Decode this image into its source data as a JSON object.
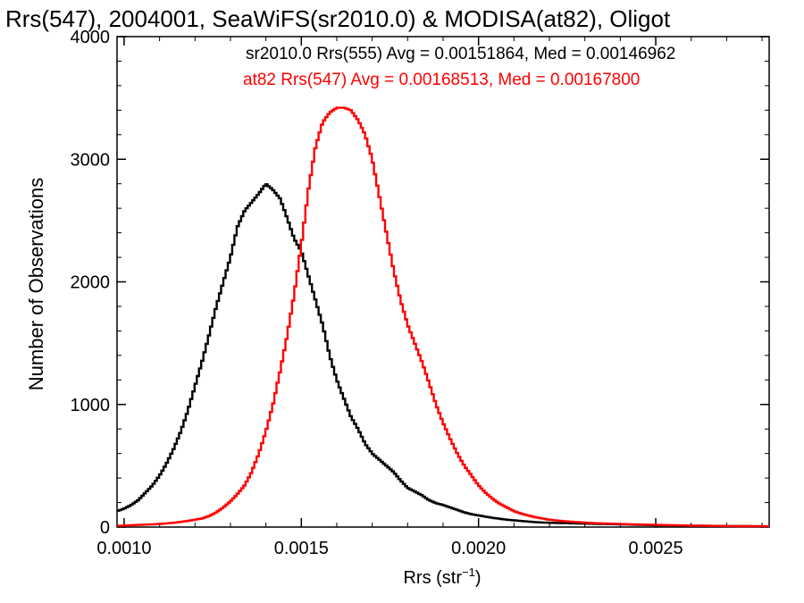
{
  "chart_data": {
    "type": "line",
    "title": "Rrs(547), 2004001, SeaWiFS(sr2010.0) & MODISA(at82), Oligot",
    "xlabel": "Rrs (str",
    "xlabel_sup": "−1",
    "xlabel_close": ")",
    "ylabel": "Number of Observations",
    "xlim": [
      0.00098,
      0.00282
    ],
    "ylim": [
      0,
      4000
    ],
    "xticks": [
      0.001,
      0.0015,
      0.002,
      0.0025
    ],
    "xtick_labels": [
      "0.0010",
      "0.0015",
      "0.0020",
      "0.0025"
    ],
    "yticks": [
      0,
      1000,
      2000,
      3000,
      4000
    ],
    "ytick_labels": [
      "0",
      "1000",
      "2000",
      "3000",
      "4000"
    ],
    "grid": false,
    "legend_position": "top-right",
    "series": [
      {
        "label": "sr2010.0 Rrs(555) Avg = 0.00151864, Med = 0.00146962",
        "color": "#000000",
        "x": [
          0.00098,
          0.001,
          0.00102,
          0.00104,
          0.00106,
          0.00108,
          0.0011,
          0.00112,
          0.00114,
          0.00116,
          0.00118,
          0.0012,
          0.00122,
          0.00124,
          0.00126,
          0.00128,
          0.0013,
          0.00132,
          0.00134,
          0.00136,
          0.00138,
          0.0014,
          0.00142,
          0.00144,
          0.00146,
          0.00148,
          0.0015,
          0.00152,
          0.00154,
          0.00156,
          0.00158,
          0.0016,
          0.00162,
          0.00164,
          0.00166,
          0.00168,
          0.0017,
          0.00172,
          0.00174,
          0.00176,
          0.00178,
          0.0018,
          0.00182,
          0.00184,
          0.00186,
          0.00188,
          0.0019,
          0.00192,
          0.00194,
          0.00196,
          0.00198,
          0.002,
          0.00204,
          0.00208,
          0.00212,
          0.00216,
          0.0022,
          0.00225,
          0.0023,
          0.0024,
          0.0025,
          0.0026,
          0.0027,
          0.00282
        ],
        "y": [
          130,
          150,
          180,
          220,
          280,
          340,
          420,
          520,
          640,
          780,
          950,
          1150,
          1350,
          1570,
          1800,
          2000,
          2200,
          2450,
          2580,
          2650,
          2720,
          2800,
          2750,
          2680,
          2520,
          2350,
          2250,
          2050,
          1850,
          1650,
          1400,
          1200,
          1050,
          900,
          800,
          680,
          600,
          550,
          500,
          450,
          380,
          320,
          290,
          260,
          220,
          195,
          180,
          160,
          140,
          120,
          105,
          95,
          75,
          60,
          50,
          40,
          35,
          32,
          28,
          22,
          15,
          12,
          8,
          6
        ]
      },
      {
        "label": "at82 Rrs(547) Avg = 0.00168513, Med = 0.00167800",
        "color": "#ff0000",
        "x": [
          0.00098,
          0.00102,
          0.00106,
          0.0011,
          0.00114,
          0.00118,
          0.00122,
          0.00124,
          0.00126,
          0.00128,
          0.0013,
          0.00132,
          0.00134,
          0.00136,
          0.00138,
          0.0014,
          0.00142,
          0.00144,
          0.00146,
          0.00148,
          0.0015,
          0.00152,
          0.00154,
          0.00156,
          0.00158,
          0.0016,
          0.00162,
          0.00164,
          0.00166,
          0.00168,
          0.0017,
          0.00172,
          0.00174,
          0.00176,
          0.00178,
          0.0018,
          0.00182,
          0.00184,
          0.00186,
          0.00188,
          0.0019,
          0.00192,
          0.00194,
          0.00196,
          0.00198,
          0.002,
          0.00202,
          0.00204,
          0.00206,
          0.00208,
          0.0021,
          0.00212,
          0.00214,
          0.00216,
          0.00218,
          0.0022,
          0.00224,
          0.00228,
          0.00232,
          0.0024,
          0.0025,
          0.0026,
          0.0027,
          0.00282
        ],
        "y": [
          10,
          15,
          20,
          25,
          35,
          50,
          70,
          90,
          120,
          160,
          210,
          270,
          340,
          450,
          600,
          780,
          1000,
          1270,
          1560,
          1900,
          2300,
          2750,
          3100,
          3300,
          3380,
          3420,
          3420,
          3400,
          3320,
          3200,
          3000,
          2700,
          2400,
          2100,
          1850,
          1650,
          1500,
          1350,
          1180,
          1000,
          850,
          720,
          600,
          500,
          420,
          340,
          280,
          230,
          190,
          160,
          130,
          110,
          95,
          80,
          70,
          60,
          48,
          40,
          33,
          25,
          18,
          12,
          8,
          6
        ]
      }
    ]
  }
}
